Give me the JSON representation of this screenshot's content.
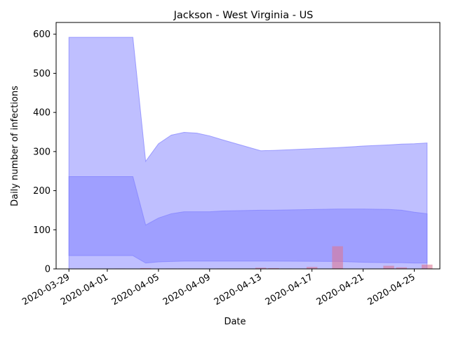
{
  "chart_data": {
    "type": "area",
    "title": "Jackson - West Virginia - US",
    "xlabel": "Date",
    "ylabel": "Daily number of infections",
    "ylim": [
      0,
      630
    ],
    "xlim": [
      "2020-03-28",
      "2020-04-27"
    ],
    "y_ticks": [
      0,
      100,
      200,
      300,
      400,
      500,
      600
    ],
    "x_ticks": [
      "2020-03-29",
      "2020-04-01",
      "2020-04-05",
      "2020-04-09",
      "2020-04-13",
      "2020-04-17",
      "2020-04-21",
      "2020-04-25"
    ],
    "grid": false,
    "colors": {
      "band": "#8080ff",
      "bars": "#dc7896"
    },
    "bands": {
      "x": [
        "2020-03-29",
        "2020-04-03",
        "2020-04-04",
        "2020-04-05",
        "2020-04-06",
        "2020-04-07",
        "2020-04-08",
        "2020-04-09",
        "2020-04-10",
        "2020-04-13",
        "2020-04-14",
        "2020-04-19",
        "2020-04-21",
        "2020-04-23",
        "2020-04-24",
        "2020-04-25",
        "2020-04-26"
      ],
      "outer_upper": [
        592,
        592,
        275,
        320,
        342,
        349,
        347,
        340,
        330,
        302,
        303,
        310,
        314,
        317,
        319,
        320,
        322
      ],
      "inner_upper": [
        236,
        236,
        112,
        130,
        141,
        146,
        146,
        146,
        148,
        150,
        150,
        153,
        153,
        152,
        150,
        145,
        141
      ],
      "inner_lower": [
        34,
        34,
        15,
        18,
        19,
        20,
        20,
        20,
        20,
        20,
        20,
        19,
        17,
        16,
        16,
        15,
        15
      ],
      "outer_lower": [
        0,
        0,
        0,
        0,
        0,
        0,
        0,
        0,
        0,
        0,
        0,
        0,
        0,
        0,
        0,
        0,
        0
      ]
    },
    "bars": {
      "x": [
        "2020-04-02",
        "2020-04-04",
        "2020-04-06",
        "2020-04-07",
        "2020-04-10",
        "2020-04-13",
        "2020-04-14",
        "2020-04-15",
        "2020-04-17",
        "2020-04-19",
        "2020-04-23",
        "2020-04-24",
        "2020-04-26"
      ],
      "values": [
        1,
        2,
        1,
        1,
        1,
        3,
        2,
        1,
        5,
        58,
        8,
        4,
        11
      ]
    }
  }
}
